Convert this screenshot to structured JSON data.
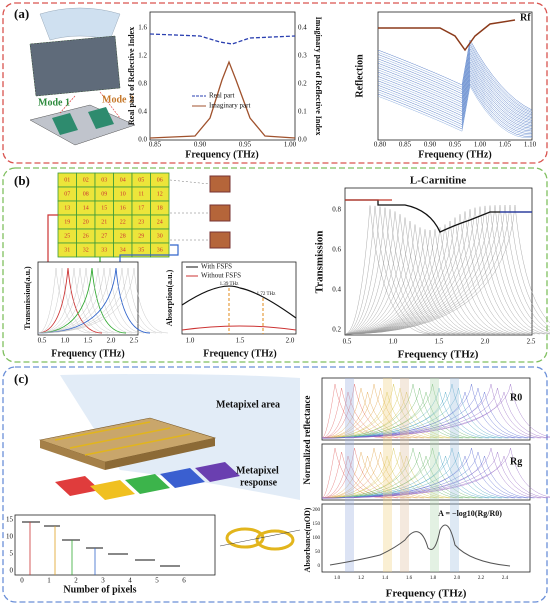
{
  "panel_a": {
    "label": "(a)",
    "mode_1": "Mode 1",
    "mode_2": "Mode 2",
    "index_chart": {
      "y_label": "Real part of Reflective Index",
      "y2_label": "Imaginary part of Reflective Index",
      "x_label": "Frequency (THz)",
      "yticks": [
        "1.6",
        "1.2",
        "0.8",
        "0.4",
        "0.0"
      ],
      "y2ticks": [
        "0.4",
        "0.3",
        "0.2",
        "0.1",
        "0.0"
      ],
      "xticks": [
        "0.85",
        "0.90",
        "0.95",
        "1.00"
      ],
      "legend": [
        "Real part",
        "Imaginary part"
      ]
    },
    "reflection_chart": {
      "y_label": "Reflection",
      "x_label": "Frequency (THz)",
      "xticks": [
        "0.80",
        "0.85",
        "0.90",
        "0.95",
        "1.00",
        "1.05",
        "1.10"
      ],
      "annotation": "Rf"
    }
  },
  "panel_b": {
    "label": "(b)",
    "grid_cells": [
      "01",
      "02",
      "03",
      "04",
      "05",
      "06",
      "07",
      "08",
      "09",
      "10",
      "11",
      "12",
      "13",
      "14",
      "15",
      "16",
      "17",
      "18",
      "19",
      "20",
      "21",
      "22",
      "23",
      "24",
      "25",
      "26",
      "27",
      "28",
      "29",
      "30",
      "31",
      "32",
      "33",
      "34",
      "35",
      "36"
    ],
    "transmission_chart": {
      "y_label": "Transmission(a.u.)",
      "x_label": "Frequency (THz)",
      "xticks": [
        "0.5",
        "1.0",
        "1.5",
        "2.0",
        "2.5"
      ]
    },
    "absorption_chart": {
      "y_label": "Absorption(a.u.)",
      "x_label": "Frequency (THz)",
      "xticks": [
        "1.0",
        "1.5",
        "2.0"
      ],
      "legend": [
        "With FSFS",
        "Without FSFS"
      ],
      "annotations": [
        "1.39 THz",
        "1.72 THz"
      ]
    },
    "carnitine_chart": {
      "title": "L-Carnitine",
      "y_label": "Transmission",
      "x_label": "Frequency (THz)",
      "yticks": [
        "0.8",
        "0.6",
        "0.4",
        "0.2"
      ],
      "xticks": [
        "0.5",
        "1.0",
        "1.5",
        "2.0",
        "2.5"
      ]
    }
  },
  "panel_c": {
    "label": "(c)",
    "metapixel_area": "Metapixel area",
    "metapixel_response": [
      "Metapixel",
      "response"
    ],
    "pixel_chart": {
      "x_label": "Number of pixels",
      "xticks": [
        "0",
        "1",
        "2",
        "3",
        "4",
        "5",
        "6"
      ],
      "yticks": [
        "15",
        "10",
        "5",
        "0"
      ]
    },
    "reflectance_chart": {
      "y_label": "Normalized reflectance",
      "r0_label": "R0",
      "rg_label": "Rg"
    },
    "absorbance_chart": {
      "y_label": "Absorbance(mOD)",
      "x_label": "Frequency (THz)",
      "formula": "A = −log10(Rg/R0)",
      "yticks": [
        "200",
        "150",
        "100",
        "50",
        "0"
      ],
      "xticks": [
        "1.0",
        "1.2",
        "1.4",
        "1.6",
        "1.8",
        "2.0",
        "2.2",
        "2.4"
      ]
    }
  }
}
